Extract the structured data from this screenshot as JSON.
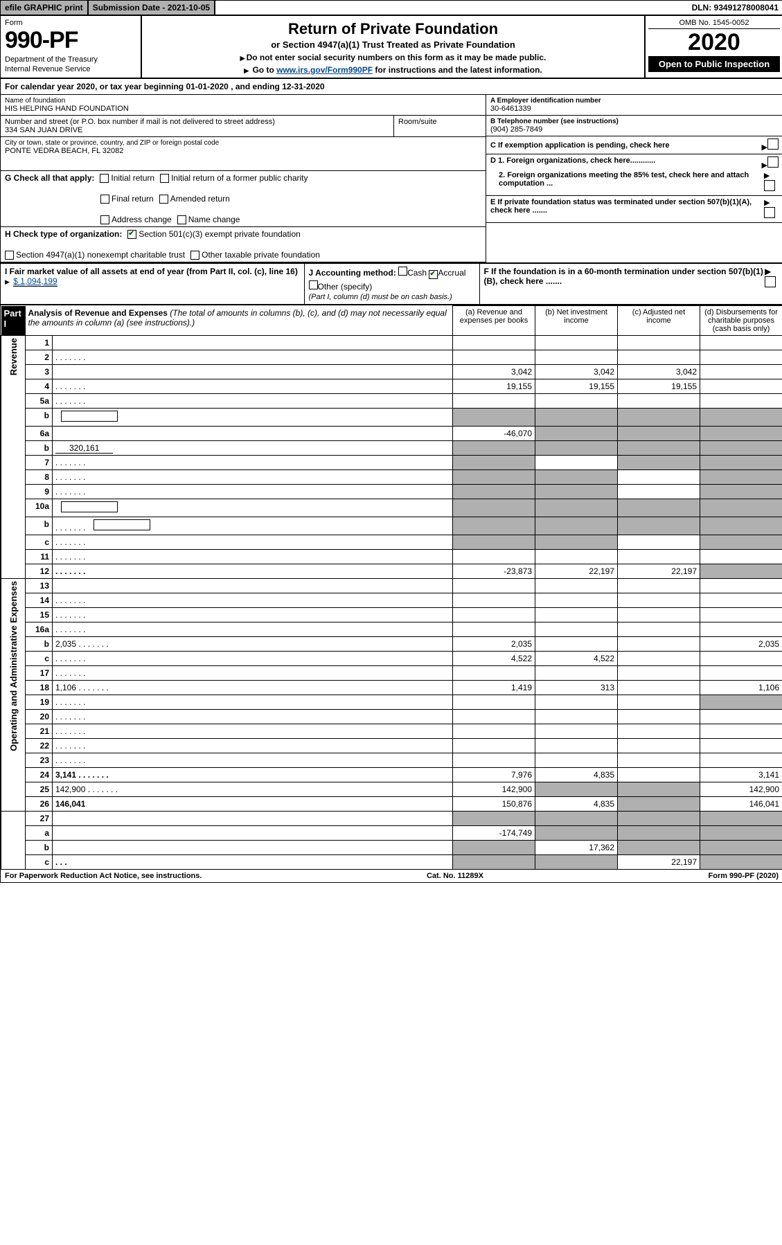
{
  "topbar": {
    "efile": "efile GRAPHIC print",
    "subdate_label": "Submission Date - 2021-10-05",
    "dln": "DLN: 93491278008041"
  },
  "header": {
    "form_word": "Form",
    "form_num": "990-PF",
    "dept1": "Department of the Treasury",
    "dept2": "Internal Revenue Service",
    "title": "Return of Private Foundation",
    "subtitle": "or Section 4947(a)(1) Trust Treated as Private Foundation",
    "line1": "Do not enter social security numbers on this form as it may be made public.",
    "line2_pre": "Go to ",
    "line2_link": "www.irs.gov/Form990PF",
    "line2_post": " for instructions and the latest information.",
    "omb": "OMB No. 1545-0052",
    "year": "2020",
    "open": "Open to Public Inspection"
  },
  "calendar": {
    "text_pre": "For calendar year 2020, or tax year beginning ",
    "begin": "01-01-2020",
    "mid": " , and ending ",
    "end": "12-31-2020"
  },
  "info": {
    "name_label": "Name of foundation",
    "name": "HIS HELPING HAND FOUNDATION",
    "addr_label": "Number and street (or P.O. box number if mail is not delivered to street address)",
    "addr": "334 SAN JUAN DRIVE",
    "room_label": "Room/suite",
    "city_label": "City or town, state or province, country, and ZIP or foreign postal code",
    "city": "PONTE VEDRA BEACH, FL  32082",
    "a_label": "A Employer identification number",
    "a_val": "30-6461339",
    "b_label": "B Telephone number (see instructions)",
    "b_val": "(904) 285-7849",
    "c_label": "C If exemption application is pending, check here",
    "d1_label": "D 1. Foreign organizations, check here............",
    "d2_label": "2. Foreign organizations meeting the 85% test, check here and attach computation ...",
    "e_label": "E  If private foundation status was terminated under section 507(b)(1)(A), check here .......",
    "f_label": "F  If the foundation is in a 60-month termination under section 507(b)(1)(B), check here ......."
  },
  "g": {
    "label": "G Check all that apply:",
    "opts": [
      "Initial return",
      "Final return",
      "Address change",
      "Initial return of a former public charity",
      "Amended return",
      "Name change"
    ]
  },
  "h": {
    "label": "H Check type of organization:",
    "opt1": "Section 501(c)(3) exempt private foundation",
    "opt2": "Section 4947(a)(1) nonexempt charitable trust",
    "opt3": "Other taxable private foundation"
  },
  "i": {
    "label": "I Fair market value of all assets at end of year (from Part II, col. (c), line 16)",
    "val": "$  1,094,199"
  },
  "j": {
    "label": "J Accounting method:",
    "cash": "Cash",
    "accrual": "Accrual",
    "other": "Other (specify)",
    "note": "(Part I, column (d) must be on cash basis.)"
  },
  "part1": {
    "tab": "Part I",
    "title": "Analysis of Revenue and Expenses",
    "note": "(The total of amounts in columns (b), (c), and (d) may not necessarily equal the amounts in column (a) (see instructions).)",
    "col_a": "(a) Revenue and expenses per books",
    "col_b": "(b) Net investment income",
    "col_c": "(c) Adjusted net income",
    "col_d": "(d) Disbursements for charitable purposes (cash basis only)"
  },
  "sidelabels": {
    "revenue": "Revenue",
    "expenses": "Operating and Administrative Expenses"
  },
  "rows": [
    {
      "n": "1",
      "d": "",
      "a": "",
      "b": "",
      "c": "",
      "grey_d": false
    },
    {
      "n": "2",
      "d": "",
      "a": "",
      "b": "",
      "c": "",
      "grey_d": false,
      "dots": true
    },
    {
      "n": "3",
      "d": "",
      "a": "3,042",
      "b": "3,042",
      "c": "3,042",
      "grey_d": false
    },
    {
      "n": "4",
      "d": "",
      "a": "19,155",
      "b": "19,155",
      "c": "19,155",
      "grey_d": false,
      "dots": true
    },
    {
      "n": "5a",
      "d": "",
      "a": "",
      "b": "",
      "c": "",
      "grey_d": false,
      "dots": true
    },
    {
      "n": "b",
      "d": "",
      "a": "",
      "b": "",
      "c": "",
      "grey_abcd": true,
      "inline": true
    },
    {
      "n": "6a",
      "d": "",
      "a": "-46,070",
      "b": "",
      "c": "",
      "grey_bcd": true
    },
    {
      "n": "b",
      "d": "",
      "a": "",
      "b": "",
      "c": "",
      "grey_abcd": true,
      "inline_val": "320,161"
    },
    {
      "n": "7",
      "d": "",
      "a": "",
      "b": "",
      "c": "",
      "grey_a": true,
      "grey_cd": true,
      "dots": true
    },
    {
      "n": "8",
      "d": "",
      "a": "",
      "b": "",
      "c": "",
      "grey_ab": true,
      "grey_d": true,
      "dots": true
    },
    {
      "n": "9",
      "d": "",
      "a": "",
      "b": "",
      "c": "",
      "grey_ab": true,
      "grey_d": true,
      "dots": true
    },
    {
      "n": "10a",
      "d": "",
      "a": "",
      "b": "",
      "c": "",
      "grey_abcd": true,
      "inline": true
    },
    {
      "n": "b",
      "d": "",
      "a": "",
      "b": "",
      "c": "",
      "grey_abcd": true,
      "inline": true,
      "dots": true
    },
    {
      "n": "c",
      "d": "",
      "a": "",
      "b": "",
      "c": "",
      "grey_ab": true,
      "grey_d": true,
      "dots": true
    },
    {
      "n": "11",
      "d": "",
      "a": "",
      "b": "",
      "c": "",
      "dots": true
    },
    {
      "n": "12",
      "d": "",
      "a": "-23,873",
      "b": "22,197",
      "c": "22,197",
      "bold": true,
      "grey_d": true,
      "dots": true
    }
  ],
  "exprows": [
    {
      "n": "13",
      "d": "",
      "a": "",
      "b": "",
      "c": ""
    },
    {
      "n": "14",
      "d": "",
      "a": "",
      "b": "",
      "c": "",
      "dots": true
    },
    {
      "n": "15",
      "d": "",
      "a": "",
      "b": "",
      "c": "",
      "dots": true
    },
    {
      "n": "16a",
      "d": "",
      "a": "",
      "b": "",
      "c": "",
      "dots": true
    },
    {
      "n": "b",
      "d": "2,035",
      "a": "2,035",
      "b": "",
      "c": "",
      "dots": true
    },
    {
      "n": "c",
      "d": "",
      "a": "4,522",
      "b": "4,522",
      "c": "",
      "dots": true
    },
    {
      "n": "17",
      "d": "",
      "a": "",
      "b": "",
      "c": "",
      "dots": true
    },
    {
      "n": "18",
      "d": "1,106",
      "a": "1,419",
      "b": "313",
      "c": "",
      "dots": true
    },
    {
      "n": "19",
      "d": "",
      "a": "",
      "b": "",
      "c": "",
      "grey_d": true,
      "dots": true
    },
    {
      "n": "20",
      "d": "",
      "a": "",
      "b": "",
      "c": "",
      "dots": true
    },
    {
      "n": "21",
      "d": "",
      "a": "",
      "b": "",
      "c": "",
      "dots": true
    },
    {
      "n": "22",
      "d": "",
      "a": "",
      "b": "",
      "c": "",
      "dots": true
    },
    {
      "n": "23",
      "d": "",
      "a": "",
      "b": "",
      "c": "",
      "dots": true
    },
    {
      "n": "24",
      "d": "3,141",
      "a": "7,976",
      "b": "4,835",
      "c": "",
      "bold": true,
      "dots": true
    },
    {
      "n": "25",
      "d": "142,900",
      "a": "142,900",
      "b": "",
      "c": "",
      "grey_bc": true,
      "dots": true
    },
    {
      "n": "26",
      "d": "146,041",
      "a": "150,876",
      "b": "4,835",
      "c": "",
      "bold": true,
      "grey_c": true
    }
  ],
  "finalrows": [
    {
      "n": "27",
      "d": "",
      "a": "",
      "b": "",
      "c": "",
      "grey_abcd": true
    },
    {
      "n": "a",
      "d": "",
      "a": "-174,749",
      "b": "",
      "c": "",
      "bold": true,
      "grey_bcd": true
    },
    {
      "n": "b",
      "d": "",
      "a": "",
      "b": "17,362",
      "c": "",
      "bold": true,
      "grey_a": true,
      "grey_cd": true
    },
    {
      "n": "c",
      "d": "",
      "a": "",
      "b": "",
      "c": "22,197",
      "bold": true,
      "grey_ab": true,
      "grey_d": true,
      "dots": true
    }
  ],
  "footer": {
    "left": "For Paperwork Reduction Act Notice, see instructions.",
    "mid": "Cat. No. 11289X",
    "right": "Form 990-PF (2020)"
  }
}
